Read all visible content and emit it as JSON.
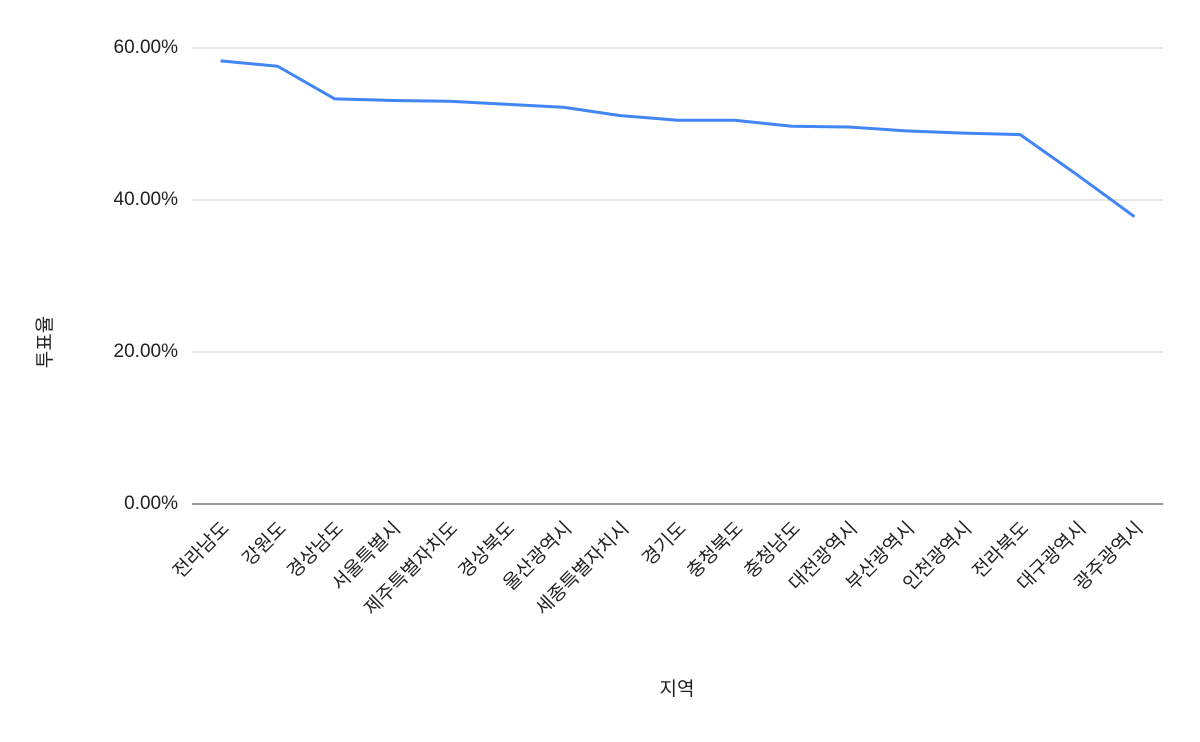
{
  "chart_data": {
    "type": "line",
    "x_label": "지역",
    "y_label": "투표율",
    "categories": [
      "전라남도",
      "강원도",
      "경상남도",
      "서울특별시",
      "제주특별자치도",
      "경상북도",
      "울산광역시",
      "세종특별자치시",
      "경기도",
      "충청북도",
      "충청남도",
      "대전광역시",
      "부산광역시",
      "인천광역시",
      "전라북도",
      "대구광역시",
      "광주광역시"
    ],
    "values": [
      58.3,
      57.6,
      53.3,
      53.1,
      53.0,
      52.6,
      52.2,
      51.1,
      50.5,
      50.5,
      49.7,
      49.6,
      49.1,
      48.8,
      48.6,
      43.3,
      37.8
    ],
    "color": "#4285f4",
    "ylim": [
      0,
      60
    ],
    "yticks": [
      {
        "value": 0,
        "label": "0.00%"
      },
      {
        "value": 20,
        "label": "20.00%"
      },
      {
        "value": 40,
        "label": "40.00%"
      },
      {
        "value": 60,
        "label": "60.00%"
      }
    ],
    "grid": true
  }
}
